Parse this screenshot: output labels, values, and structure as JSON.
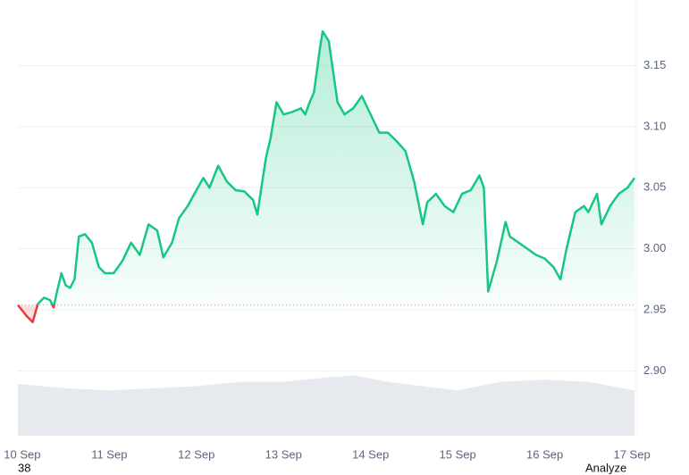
{
  "chart_data": {
    "type": "line",
    "x": [
      -0.05,
      0.05,
      0.12,
      0.18,
      0.25,
      0.32,
      0.36,
      0.4,
      0.45,
      0.5,
      0.55,
      0.6,
      0.65,
      0.72,
      0.8,
      0.88,
      0.95,
      1.05,
      1.15,
      1.25,
      1.35,
      1.45,
      1.55,
      1.62,
      1.72,
      1.8,
      1.9,
      2.0,
      2.08,
      2.15,
      2.25,
      2.35,
      2.45,
      2.55,
      2.65,
      2.7,
      2.75,
      2.8,
      2.85,
      2.92,
      3.0,
      3.1,
      3.2,
      3.25,
      3.3,
      3.35,
      3.42,
      3.45,
      3.52,
      3.58,
      3.62,
      3.7,
      3.8,
      3.9,
      4.0,
      4.1,
      4.2,
      4.3,
      4.4,
      4.5,
      4.6,
      4.65,
      4.75,
      4.85,
      4.95,
      5.05,
      5.15,
      5.25,
      5.3,
      5.35,
      5.45,
      5.55,
      5.6,
      5.7,
      5.8,
      5.9,
      6.0,
      6.1,
      6.18,
      6.25,
      6.35,
      6.45,
      6.5,
      6.6,
      6.65,
      6.75,
      6.85,
      6.95,
      7.03
    ],
    "values": [
      2.954,
      2.945,
      2.94,
      2.955,
      2.96,
      2.958,
      2.952,
      2.965,
      2.98,
      2.97,
      2.968,
      2.975,
      3.01,
      3.012,
      3.005,
      2.985,
      2.98,
      2.98,
      2.99,
      3.005,
      2.995,
      3.02,
      3.015,
      2.993,
      3.005,
      3.025,
      3.035,
      3.048,
      3.058,
      3.05,
      3.068,
      3.055,
      3.048,
      3.047,
      3.04,
      3.028,
      3.052,
      3.075,
      3.09,
      3.12,
      3.11,
      3.112,
      3.115,
      3.11,
      3.12,
      3.128,
      3.165,
      3.178,
      3.17,
      3.14,
      3.12,
      3.11,
      3.115,
      3.125,
      3.11,
      3.095,
      3.095,
      3.088,
      3.08,
      3.055,
      3.02,
      3.038,
      3.045,
      3.035,
      3.03,
      3.045,
      3.048,
      3.06,
      3.05,
      2.965,
      2.99,
      3.022,
      3.01,
      3.005,
      3.0,
      2.995,
      2.992,
      2.985,
      2.975,
      3.0,
      3.03,
      3.035,
      3.03,
      3.045,
      3.02,
      3.035,
      3.045,
      3.05,
      3.058
    ],
    "color": "#16c784",
    "down_color": "#ea3943",
    "baseline": 2.954,
    "xlim": [
      -0.05,
      7.03
    ],
    "xticks": [
      {
        "value": 0,
        "label": "10 Sep"
      },
      {
        "value": 1,
        "label": "11 Sep"
      },
      {
        "value": 2,
        "label": "12 Sep"
      },
      {
        "value": 3,
        "label": "13 Sep"
      },
      {
        "value": 4,
        "label": "14 Sep"
      },
      {
        "value": 5,
        "label": "15 Sep"
      },
      {
        "value": 6,
        "label": "16 Sep"
      },
      {
        "value": 7,
        "label": "17 Sep"
      }
    ],
    "ylim": [
      2.847,
      3.2
    ],
    "yticks": [
      {
        "value": 2.9,
        "label": "2.90"
      },
      2.95,
      {
        "value": 3.0,
        "label": "3.00"
      },
      3.05,
      {
        "value": 3.1,
        "label": "3.10"
      },
      3.15
    ],
    "grid": true,
    "volume": {
      "x": [
        -0.05,
        0.5,
        1.0,
        1.5,
        2.0,
        2.5,
        3.0,
        3.5,
        3.8,
        4.2,
        4.6,
        5.0,
        5.5,
        6.0,
        6.5,
        7.03
      ],
      "values": [
        12,
        11,
        10.5,
        11,
        11.5,
        12.5,
        12.5,
        13.5,
        14,
        12.5,
        11.5,
        10.5,
        12.5,
        13,
        12.5,
        10.5
      ],
      "y2lim": [
        0,
        100
      ],
      "color": "#e6e9ee"
    },
    "footer_left": "38",
    "footer_right": "Analyze"
  }
}
